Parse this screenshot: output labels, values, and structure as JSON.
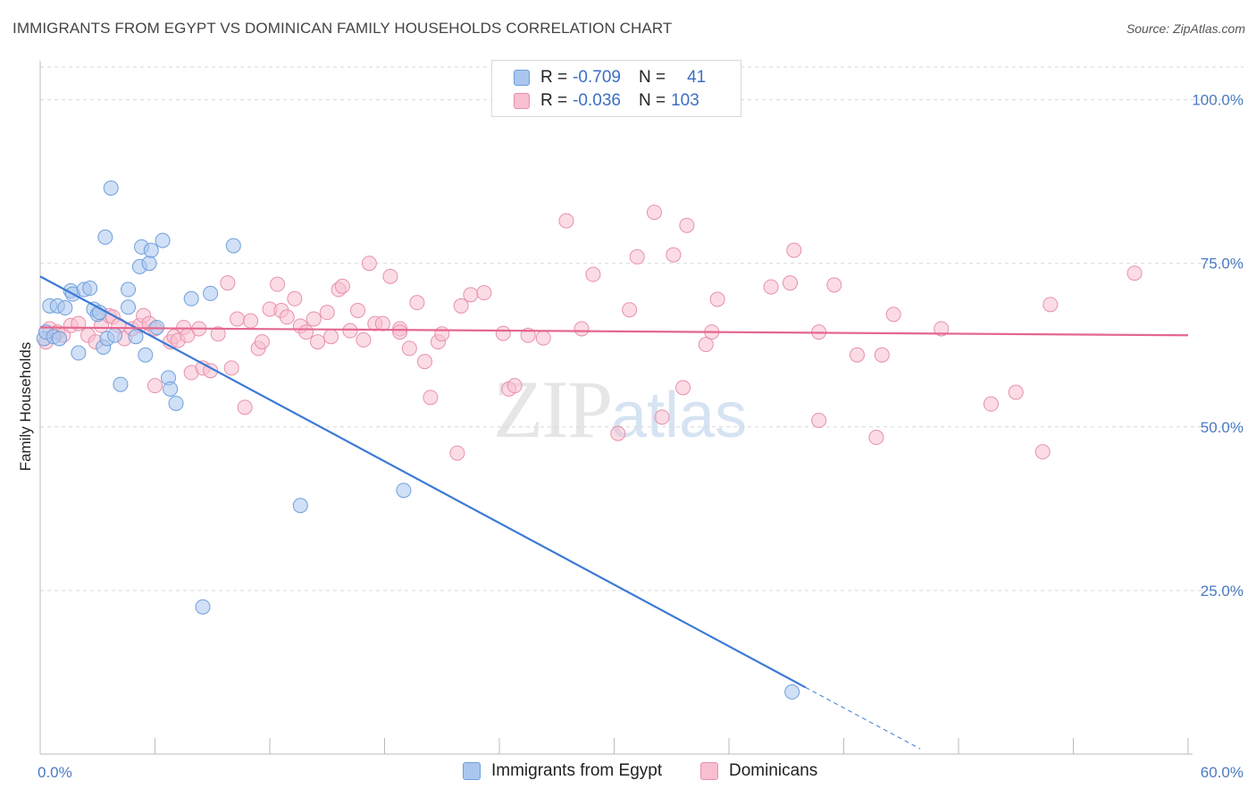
{
  "header": {
    "title": "IMMIGRANTS FROM EGYPT VS DOMINICAN FAMILY HOUSEHOLDS CORRELATION CHART",
    "source": "Source: ZipAtlas.com"
  },
  "watermark": {
    "zip": "ZIP",
    "atlas": "atlas"
  },
  "legend": {
    "rows": [
      {
        "r_label": "R =",
        "r_value": "-0.709",
        "n_label": "N =",
        "n_value": "41",
        "color": "#a9c6ee",
        "edge": "#6f9fdc"
      },
      {
        "r_label": "R =",
        "r_value": "-0.036",
        "n_label": "N =",
        "n_value": "103",
        "color": "#f7bfd0",
        "edge": "#e890ac"
      }
    ]
  },
  "bottom_legend": {
    "items": [
      {
        "label": "Immigrants from Egypt",
        "color": "#a9c6ee",
        "edge": "#6f9fdc"
      },
      {
        "label": "Dominicans",
        "color": "#f7bfd0",
        "edge": "#e890ac"
      }
    ]
  },
  "chart_data": {
    "type": "scatter",
    "title": "IMMIGRANTS FROM EGYPT VS DOMINICAN FAMILY HOUSEHOLDS CORRELATION CHART",
    "xlabel": "",
    "ylabel": "Family Households",
    "xlim": [
      0,
      60
    ],
    "ylim": [
      0,
      105
    ],
    "x_tick_labels": {
      "min": "0.0%",
      "max": "60.0%"
    },
    "y_ticks": [
      {
        "value": 25,
        "label": "25.0%"
      },
      {
        "value": 50,
        "label": "50.0%"
      },
      {
        "value": 75,
        "label": "75.0%"
      },
      {
        "value": 100,
        "label": "100.0%"
      }
    ],
    "grid": "horizontal dashed",
    "series": [
      {
        "name": "Immigrants from Egypt",
        "color": "#6f9fdc",
        "fill": "#a9c6ee",
        "points": [
          [
            0.2,
            63.5
          ],
          [
            0.3,
            64.5
          ],
          [
            0.5,
            68.5
          ],
          [
            0.7,
            63.8
          ],
          [
            0.9,
            68.5
          ],
          [
            1.0,
            63.5
          ],
          [
            1.3,
            68.2
          ],
          [
            1.6,
            70.8
          ],
          [
            1.7,
            70.3
          ],
          [
            2.0,
            61.3
          ],
          [
            2.3,
            71.0
          ],
          [
            2.6,
            71.2
          ],
          [
            2.8,
            68.0
          ],
          [
            3.0,
            67.2
          ],
          [
            3.1,
            67.5
          ],
          [
            3.3,
            62.2
          ],
          [
            3.4,
            79.0
          ],
          [
            3.5,
            63.5
          ],
          [
            3.7,
            86.5
          ],
          [
            3.9,
            64.0
          ],
          [
            4.2,
            56.5
          ],
          [
            4.6,
            71.0
          ],
          [
            4.6,
            68.3
          ],
          [
            5.0,
            63.8
          ],
          [
            5.2,
            74.5
          ],
          [
            5.3,
            77.5
          ],
          [
            5.5,
            61.0
          ],
          [
            5.7,
            75.0
          ],
          [
            5.8,
            77.0
          ],
          [
            6.1,
            65.2
          ],
          [
            6.4,
            78.5
          ],
          [
            6.7,
            57.5
          ],
          [
            6.8,
            55.8
          ],
          [
            7.1,
            53.6
          ],
          [
            7.9,
            69.6
          ],
          [
            8.5,
            22.5
          ],
          [
            8.9,
            70.4
          ],
          [
            10.1,
            77.7
          ],
          [
            13.6,
            38.0
          ],
          [
            19.0,
            40.3
          ],
          [
            39.3,
            9.5
          ]
        ],
        "trend": {
          "x1": 0,
          "y1": 73.0,
          "x2": 40.0,
          "y2": 10.2,
          "dash_x2": 46.0,
          "dash_y2": 0.8
        }
      },
      {
        "name": "Dominicans",
        "color": "#e890ac",
        "fill": "#f7bfd0",
        "points": [
          [
            0.3,
            63.0
          ],
          [
            0.5,
            65.0
          ],
          [
            0.9,
            64.5
          ],
          [
            1.2,
            64.0
          ],
          [
            1.6,
            65.5
          ],
          [
            2.0,
            65.8
          ],
          [
            2.5,
            64.0
          ],
          [
            2.9,
            63.0
          ],
          [
            3.2,
            65.5
          ],
          [
            3.6,
            67.0
          ],
          [
            3.8,
            66.8
          ],
          [
            4.1,
            65.5
          ],
          [
            4.4,
            63.5
          ],
          [
            4.8,
            65.0
          ],
          [
            5.2,
            65.5
          ],
          [
            5.4,
            67.0
          ],
          [
            5.7,
            65.8
          ],
          [
            6.0,
            65.0
          ],
          [
            6.0,
            56.3
          ],
          [
            6.8,
            63.0
          ],
          [
            7.0,
            63.8
          ],
          [
            7.2,
            63.2
          ],
          [
            7.5,
            65.2
          ],
          [
            7.7,
            64.0
          ],
          [
            7.9,
            58.3
          ],
          [
            8.3,
            65.0
          ],
          [
            8.5,
            59.0
          ],
          [
            8.9,
            58.6
          ],
          [
            9.3,
            64.2
          ],
          [
            9.8,
            72.0
          ],
          [
            10.0,
            59.0
          ],
          [
            10.3,
            66.5
          ],
          [
            10.7,
            53.0
          ],
          [
            11.0,
            66.2
          ],
          [
            11.4,
            62.0
          ],
          [
            11.6,
            63.0
          ],
          [
            12.0,
            68.0
          ],
          [
            12.4,
            71.8
          ],
          [
            12.6,
            67.8
          ],
          [
            12.9,
            66.8
          ],
          [
            13.3,
            69.6
          ],
          [
            13.6,
            65.4
          ],
          [
            13.9,
            64.5
          ],
          [
            14.3,
            66.5
          ],
          [
            14.5,
            63.0
          ],
          [
            15.0,
            67.5
          ],
          [
            15.2,
            63.8
          ],
          [
            15.6,
            71.0
          ],
          [
            15.8,
            71.5
          ],
          [
            16.2,
            64.7
          ],
          [
            16.6,
            67.8
          ],
          [
            16.9,
            63.3
          ],
          [
            17.2,
            75.0
          ],
          [
            17.5,
            65.8
          ],
          [
            17.9,
            65.8
          ],
          [
            18.3,
            73.0
          ],
          [
            18.8,
            65.0
          ],
          [
            18.8,
            64.5
          ],
          [
            19.3,
            62.0
          ],
          [
            19.7,
            69.0
          ],
          [
            20.1,
            60.0
          ],
          [
            20.4,
            54.5
          ],
          [
            20.8,
            63.0
          ],
          [
            21.0,
            64.2
          ],
          [
            21.8,
            46.0
          ],
          [
            22.0,
            68.5
          ],
          [
            22.5,
            70.2
          ],
          [
            23.2,
            70.5
          ],
          [
            24.2,
            64.3
          ],
          [
            24.5,
            55.8
          ],
          [
            24.8,
            56.3
          ],
          [
            25.5,
            64.0
          ],
          [
            26.3,
            63.6
          ],
          [
            27.5,
            81.5
          ],
          [
            28.3,
            65.0
          ],
          [
            28.9,
            73.3
          ],
          [
            30.2,
            49.0
          ],
          [
            30.8,
            67.9
          ],
          [
            31.2,
            76.0
          ],
          [
            32.1,
            82.8
          ],
          [
            32.5,
            51.5
          ],
          [
            33.1,
            76.3
          ],
          [
            33.6,
            56.0
          ],
          [
            33.8,
            80.8
          ],
          [
            34.8,
            62.6
          ],
          [
            35.1,
            64.5
          ],
          [
            35.4,
            69.5
          ],
          [
            38.2,
            71.4
          ],
          [
            39.4,
            77.0
          ],
          [
            39.2,
            72.0
          ],
          [
            40.7,
            51.0
          ],
          [
            40.7,
            64.5
          ],
          [
            41.5,
            71.7
          ],
          [
            42.7,
            61.0
          ],
          [
            43.7,
            48.4
          ],
          [
            44.0,
            61.0
          ],
          [
            44.6,
            67.2
          ],
          [
            47.1,
            65.0
          ],
          [
            49.7,
            53.5
          ],
          [
            51.0,
            55.3
          ],
          [
            52.4,
            46.2
          ],
          [
            52.8,
            68.7
          ],
          [
            57.2,
            73.5
          ]
        ],
        "trend": {
          "x1": 0,
          "y1": 65.2,
          "x2": 60.0,
          "y2": 64.0
        }
      }
    ]
  }
}
